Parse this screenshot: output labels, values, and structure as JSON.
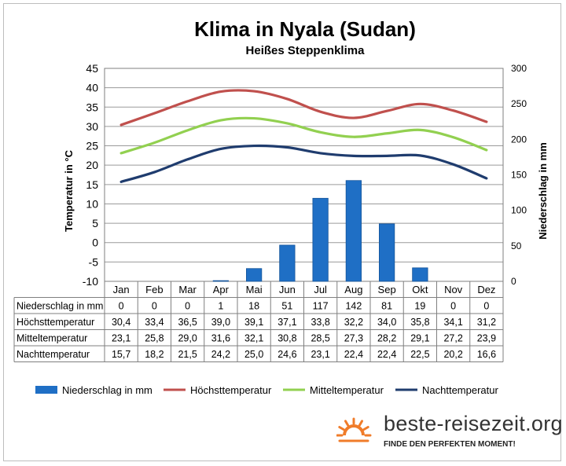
{
  "chart_data": {
    "type": "bar+line",
    "title": "Klima in Nyala (Sudan)",
    "subtitle": "Heißes Steppenklima",
    "ylabel_left": "Temperatur in °C",
    "ylabel_right": "Niederschlag in mm",
    "ylim_left": [
      -10,
      45
    ],
    "ylim_right": [
      0,
      300
    ],
    "yticks_left": [
      "45",
      "40",
      "35",
      "30",
      "25",
      "20",
      "15",
      "10",
      "5",
      "0",
      "-5",
      "-10"
    ],
    "yticks_right": [
      "300",
      "250",
      "200",
      "150",
      "100",
      "50",
      "0"
    ],
    "grid": true,
    "legend_position": "bottom",
    "categories": [
      "Jan",
      "Feb",
      "Mar",
      "Apr",
      "Mai",
      "Jun",
      "Jul",
      "Aug",
      "Sep",
      "Okt",
      "Nov",
      "Dez"
    ],
    "series": [
      {
        "name": "Niederschlag in mm",
        "kind": "bar",
        "axis": "right",
        "color": "#1f6fc5",
        "values": [
          0,
          0,
          0,
          1,
          18,
          51,
          117,
          142,
          81,
          19,
          0,
          0
        ],
        "labels": [
          "0",
          "0",
          "0",
          "1",
          "18",
          "51",
          "117",
          "142",
          "81",
          "19",
          "0",
          "0"
        ]
      },
      {
        "name": "Höchsttemperatur",
        "kind": "line",
        "axis": "left",
        "color": "#c0504d",
        "values": [
          30.4,
          33.4,
          36.5,
          39.0,
          39.1,
          37.1,
          33.8,
          32.2,
          34.0,
          35.8,
          34.1,
          31.2
        ],
        "labels": [
          "30,4",
          "33,4",
          "36,5",
          "39,0",
          "39,1",
          "37,1",
          "33,8",
          "32,2",
          "34,0",
          "35,8",
          "34,1",
          "31,2"
        ]
      },
      {
        "name": "Mitteltemperatur",
        "kind": "line",
        "axis": "left",
        "color": "#92d050",
        "values": [
          23.1,
          25.8,
          29.0,
          31.6,
          32.1,
          30.8,
          28.5,
          27.3,
          28.2,
          29.1,
          27.2,
          23.9
        ],
        "labels": [
          "23,1",
          "25,8",
          "29,0",
          "31,6",
          "32,1",
          "30,8",
          "28,5",
          "27,3",
          "28,2",
          "29,1",
          "27,2",
          "23,9"
        ]
      },
      {
        "name": "Nachttemperatur",
        "kind": "line",
        "axis": "left",
        "color": "#1f3c6e",
        "values": [
          15.7,
          18.2,
          21.5,
          24.2,
          25.0,
          24.6,
          23.1,
          22.4,
          22.4,
          22.5,
          20.2,
          16.6
        ],
        "labels": [
          "15,7",
          "18,2",
          "21,5",
          "24,2",
          "25,0",
          "24,6",
          "23,1",
          "22,4",
          "22,4",
          "22,5",
          "20,2",
          "16,6"
        ]
      }
    ]
  },
  "brand": {
    "name": "beste-reisezeit.org",
    "slogan": "FINDE DEN PERFEKTEN MOMENT!",
    "icon": "sun-icon",
    "icon_color": "#f07c2a"
  }
}
